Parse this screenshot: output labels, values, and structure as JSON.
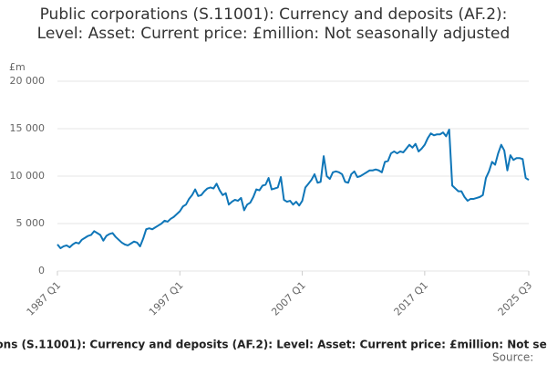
{
  "chart_data": {
    "type": "line",
    "title": "Public corporations (S.11001): Currency and deposits (AF.2): Level: Asset: Current price: £million: Not seasonally adjusted",
    "y_unit": "£m",
    "source_label": "Source:",
    "categories": [
      "1987 Q1",
      null,
      null,
      null,
      null,
      null,
      null,
      null,
      null,
      null,
      null,
      null,
      null,
      null,
      null,
      null,
      null,
      null,
      null,
      null,
      null,
      null,
      null,
      null,
      null,
      null,
      null,
      null,
      null,
      null,
      null,
      null,
      null,
      null,
      null,
      null,
      null,
      null,
      null,
      null,
      "1997 Q1",
      null,
      null,
      null,
      null,
      null,
      null,
      null,
      null,
      null,
      null,
      null,
      null,
      null,
      null,
      null,
      null,
      null,
      null,
      null,
      null,
      null,
      null,
      null,
      null,
      null,
      null,
      null,
      null,
      null,
      null,
      null,
      null,
      null,
      null,
      null,
      null,
      null,
      null,
      null,
      "2007 Q1",
      null,
      null,
      null,
      null,
      null,
      null,
      null,
      null,
      null,
      null,
      null,
      null,
      null,
      null,
      null,
      null,
      null,
      null,
      null,
      null,
      null,
      null,
      null,
      null,
      null,
      null,
      null,
      null,
      null,
      null,
      null,
      null,
      null,
      null,
      null,
      null,
      null,
      null,
      null,
      "2017 Q1",
      null,
      null,
      null,
      null,
      null,
      null,
      null,
      null,
      null,
      null,
      null,
      null,
      null,
      null,
      null,
      null,
      null,
      null,
      null,
      null,
      null,
      null,
      null,
      null,
      null,
      null,
      null,
      null,
      null,
      null,
      null,
      null,
      null,
      "2025 Q3"
    ],
    "series": [
      {
        "color": "#0f76b8",
        "values": [
          2800,
          2400,
          2600,
          2700,
          2500,
          2800,
          3000,
          2900,
          3300,
          3500,
          3700,
          3800,
          4200,
          4000,
          3800,
          3200,
          3700,
          3900,
          4000,
          3600,
          3300,
          3000,
          2800,
          2700,
          2900,
          3100,
          3000,
          2600,
          3400,
          4400,
          4500,
          4400,
          4600,
          4800,
          5000,
          5300,
          5200,
          5500,
          5700,
          6000,
          6300,
          6800,
          7000,
          7600,
          8000,
          8600,
          7900,
          8000,
          8400,
          8700,
          8800,
          8700,
          9200,
          8500,
          8000,
          8200,
          7000,
          7300,
          7500,
          7400,
          7700,
          6400,
          7000,
          7200,
          7800,
          8600,
          8500,
          9000,
          9100,
          9800,
          8600,
          8700,
          8800,
          9900,
          7500,
          7300,
          7400,
          7000,
          7300,
          6900,
          7400,
          8800,
          9200,
          9600,
          10200,
          9300,
          9400,
          12100,
          10000,
          9700,
          10400,
          10500,
          10400,
          10200,
          9400,
          9300,
          10200,
          10500,
          9900,
          10000,
          10200,
          10400,
          10600,
          10600,
          10700,
          10600,
          10400,
          11500,
          11600,
          12400,
          12600,
          12400,
          12600,
          12500,
          12900,
          13300,
          13000,
          13400,
          12600,
          12900,
          13300,
          14000,
          14500,
          14300,
          14400,
          14400,
          14600,
          14200,
          14900,
          9000,
          8700,
          8400,
          8400,
          7800,
          7400,
          7600,
          7600,
          7700,
          7800,
          8000,
          9800,
          10500,
          11500,
          11200,
          12400,
          13300,
          12700,
          10600,
          12200,
          11700,
          11900,
          11900,
          11800,
          9800,
          9600
        ]
      }
    ],
    "ylim": [
      0,
      20000
    ],
    "yticks": [
      0,
      {
        "value": 5000,
        "label": "5 000"
      },
      {
        "value": 10000,
        "label": "10 000"
      },
      {
        "value": 15000,
        "label": "15 000"
      },
      {
        "value": 20000,
        "label": "20 000"
      }
    ],
    "grid": true
  }
}
